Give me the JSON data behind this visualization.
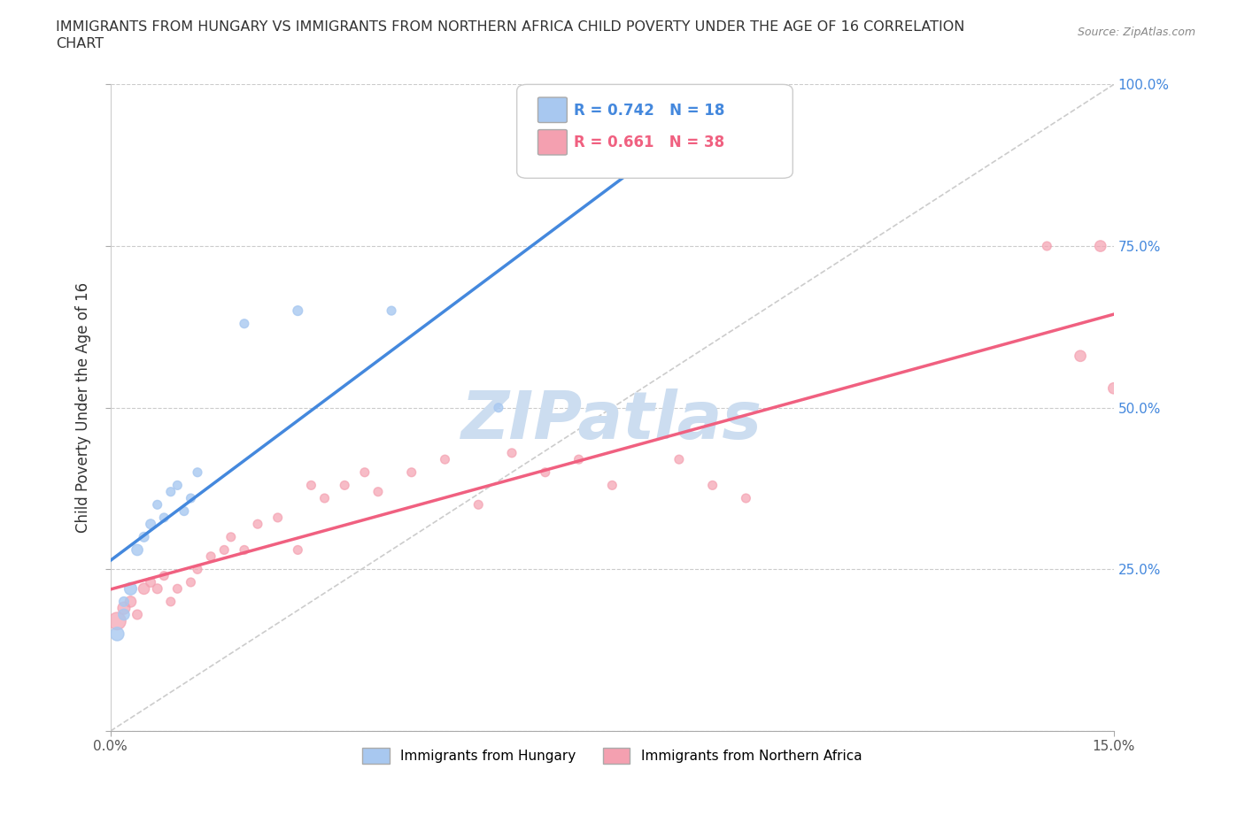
{
  "title_line1": "IMMIGRANTS FROM HUNGARY VS IMMIGRANTS FROM NORTHERN AFRICA CHILD POVERTY UNDER THE AGE OF 16 CORRELATION",
  "title_line2": "CHART",
  "source": "Source: ZipAtlas.com",
  "ylabel": "Child Poverty Under the Age of 16",
  "xlim": [
    0.0,
    0.15
  ],
  "ylim": [
    0.0,
    1.0
  ],
  "yticks": [
    0.0,
    0.25,
    0.5,
    0.75,
    1.0
  ],
  "ytick_labels": [
    "0.0%",
    "25.0%",
    "50.0%",
    "75.0%",
    "100.0%"
  ],
  "r_hungary": 0.742,
  "n_hungary": 18,
  "r_africa": 0.661,
  "n_africa": 38,
  "color_hungary": "#a8c8f0",
  "color_africa": "#f4a0b0",
  "color_line_hungary": "#4488dd",
  "color_line_africa": "#f06080",
  "background_color": "#ffffff",
  "watermark": "ZIPatlas",
  "watermark_color": "#ccddf0",
  "hungary_x": [
    0.001,
    0.002,
    0.002,
    0.003,
    0.004,
    0.005,
    0.006,
    0.007,
    0.008,
    0.009,
    0.01,
    0.011,
    0.012,
    0.013,
    0.02,
    0.028,
    0.042,
    0.058
  ],
  "hungary_y": [
    0.15,
    0.18,
    0.2,
    0.22,
    0.28,
    0.3,
    0.32,
    0.35,
    0.33,
    0.37,
    0.38,
    0.34,
    0.36,
    0.4,
    0.63,
    0.65,
    0.65,
    0.5
  ],
  "hungary_size": [
    120,
    80,
    60,
    100,
    80,
    60,
    60,
    50,
    50,
    50,
    50,
    50,
    50,
    50,
    50,
    60,
    50,
    50
  ],
  "africa_x": [
    0.001,
    0.002,
    0.003,
    0.004,
    0.005,
    0.006,
    0.007,
    0.008,
    0.009,
    0.01,
    0.012,
    0.013,
    0.015,
    0.017,
    0.018,
    0.02,
    0.022,
    0.025,
    0.028,
    0.03,
    0.032,
    0.035,
    0.038,
    0.04,
    0.045,
    0.05,
    0.055,
    0.06,
    0.065,
    0.07,
    0.075,
    0.085,
    0.09,
    0.095,
    0.14,
    0.145,
    0.15,
    0.148
  ],
  "africa_y": [
    0.17,
    0.19,
    0.2,
    0.18,
    0.22,
    0.23,
    0.22,
    0.24,
    0.2,
    0.22,
    0.23,
    0.25,
    0.27,
    0.28,
    0.3,
    0.28,
    0.32,
    0.33,
    0.28,
    0.38,
    0.36,
    0.38,
    0.4,
    0.37,
    0.4,
    0.42,
    0.35,
    0.43,
    0.4,
    0.42,
    0.38,
    0.42,
    0.38,
    0.36,
    0.75,
    0.58,
    0.53,
    0.75
  ],
  "africa_size": [
    200,
    100,
    80,
    60,
    80,
    60,
    60,
    50,
    50,
    50,
    50,
    50,
    50,
    50,
    50,
    50,
    50,
    50,
    50,
    50,
    50,
    50,
    50,
    50,
    50,
    50,
    50,
    50,
    50,
    50,
    50,
    50,
    50,
    50,
    50,
    80,
    80,
    80
  ]
}
